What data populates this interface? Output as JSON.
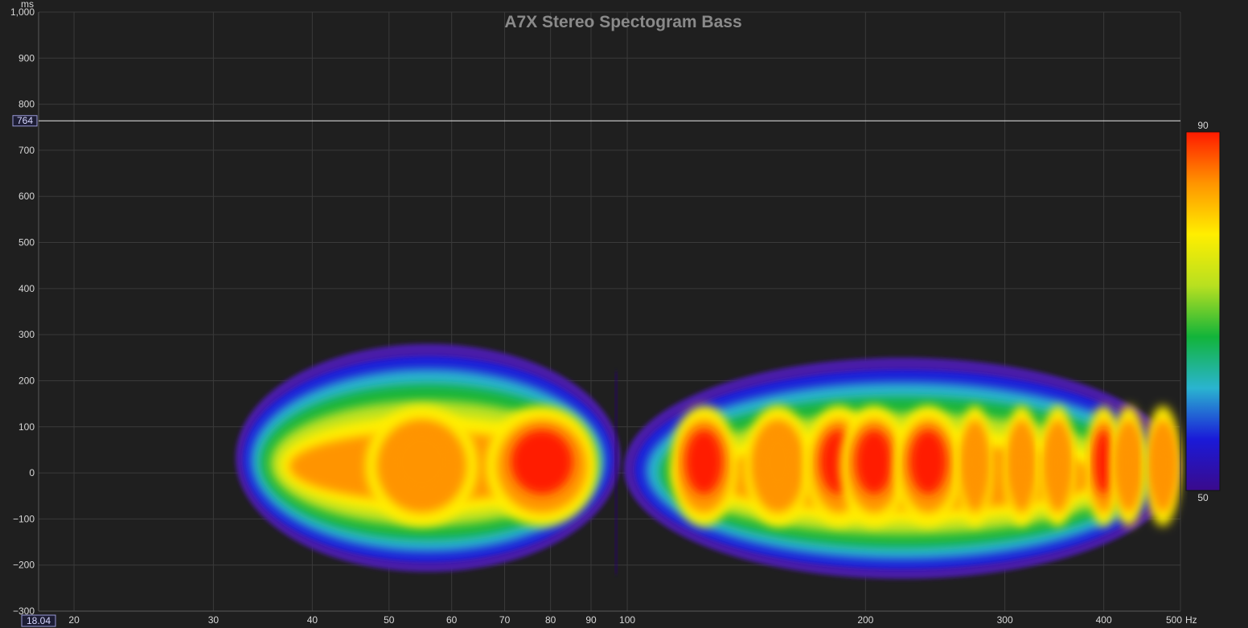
{
  "chart_data": {
    "type": "heatmap",
    "title": "A7X Stereo Spectogram Bass",
    "xlabel": "",
    "ylabel": "",
    "x_unit": "Hz",
    "y_unit": "ms",
    "x_scale": "log",
    "xlim": [
      18.04,
      500
    ],
    "ylim": [
      -300,
      1000
    ],
    "x_ticks": [
      20,
      30,
      40,
      50,
      60,
      70,
      80,
      90,
      100,
      200,
      300,
      400,
      500
    ],
    "x_tick_labels": [
      "20",
      "30",
      "40",
      "50",
      "60",
      "70",
      "80",
      "90",
      "100",
      "200",
      "300",
      "400",
      "500"
    ],
    "y_ticks": [
      -300,
      -200,
      -100,
      0,
      100,
      200,
      300,
      400,
      500,
      600,
      700,
      800,
      900,
      1000
    ],
    "y_tick_labels": [
      "−300",
      "−200",
      "−100",
      "0",
      "100",
      "200",
      "300",
      "400",
      "500",
      "600",
      "700",
      "800",
      "900",
      "1,000"
    ],
    "grid": true,
    "cursor": {
      "time_ms": 764,
      "time_label": "764",
      "freq_hz": 18.04,
      "freq_label": "18.04"
    },
    "colorbar": {
      "min": 50,
      "max": 90,
      "min_label": "50",
      "max_label": "90",
      "colors": [
        "#3a0a8c",
        "#1a1ad8",
        "#2ab4d0",
        "#12b43a",
        "#b8e020",
        "#ffee00",
        "#ff9400",
        "#ff1a00"
      ]
    },
    "resonances": [
      {
        "freq_hz": 55,
        "peak_level": 86,
        "start_ms": 265,
        "end_ms": -215
      },
      {
        "freq_hz": 78,
        "peak_level": 90,
        "start_ms": 285,
        "end_ms": -215
      },
      {
        "freq_hz": 125,
        "peak_level": 90,
        "start_ms": 255,
        "end_ms": -225
      },
      {
        "freq_hz": 155,
        "peak_level": 87,
        "start_ms": 240,
        "end_ms": -230
      },
      {
        "freq_hz": 185,
        "peak_level": 88,
        "start_ms": 245,
        "end_ms": -230
      },
      {
        "freq_hz": 205,
        "peak_level": 89,
        "start_ms": 245,
        "end_ms": -230
      },
      {
        "freq_hz": 240,
        "peak_level": 88,
        "start_ms": 235,
        "end_ms": -225
      },
      {
        "freq_hz": 275,
        "peak_level": 84,
        "start_ms": 230,
        "end_ms": -225
      },
      {
        "freq_hz": 315,
        "peak_level": 85,
        "start_ms": 245,
        "end_ms": -225
      },
      {
        "freq_hz": 350,
        "peak_level": 86,
        "start_ms": 250,
        "end_ms": -225
      },
      {
        "freq_hz": 400,
        "peak_level": 89,
        "start_ms": 250,
        "end_ms": -230
      },
      {
        "freq_hz": 430,
        "peak_level": 84,
        "start_ms": 240,
        "end_ms": -225
      },
      {
        "freq_hz": 475,
        "peak_level": 86,
        "start_ms": 235,
        "end_ms": -220
      }
    ]
  }
}
